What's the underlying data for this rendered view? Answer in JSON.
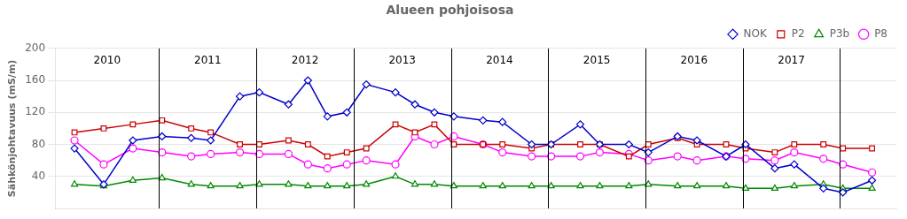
{
  "chart_data": {
    "type": "line",
    "title": "Alueen pohjoisosa",
    "ylabel": "Sähkönjohtavuus (mS/m)",
    "x": [
      2009.3,
      2009.6,
      2009.9,
      2010.2,
      2010.5,
      2010.7,
      2011.0,
      2011.2,
      2011.5,
      2011.7,
      2011.9,
      2012.1,
      2012.3,
      2012.6,
      2012.8,
      2013.0,
      2013.2,
      2013.5,
      2013.7,
      2014.0,
      2014.2,
      2014.5,
      2014.7,
      2015.0,
      2015.2,
      2015.5,
      2015.7,
      2016.0,
      2016.2,
      2016.5,
      2016.7,
      2017.0,
      2017.2,
      2017.5
    ],
    "series": [
      {
        "name": "NOK",
        "color": "#0000CC",
        "marker": "diamond",
        "values": [
          75,
          30,
          85,
          90,
          88,
          85,
          140,
          145,
          130,
          160,
          115,
          120,
          155,
          145,
          130,
          120,
          115,
          110,
          108,
          80,
          80,
          105,
          80,
          80,
          70,
          90,
          85,
          65,
          80,
          50,
          55,
          25,
          20,
          35
        ]
      },
      {
        "name": "P2",
        "color": "#CC0000",
        "marker": "square",
        "values": [
          95,
          100,
          105,
          110,
          100,
          95,
          80,
          80,
          85,
          80,
          65,
          70,
          75,
          105,
          95,
          105,
          80,
          80,
          80,
          75,
          80,
          80,
          80,
          65,
          80,
          88,
          80,
          80,
          75,
          70,
          80,
          80,
          75,
          75
        ]
      },
      {
        "name": "P3b",
        "color": "#008800",
        "marker": "triangle",
        "values": [
          30,
          28,
          35,
          38,
          30,
          28,
          28,
          30,
          30,
          28,
          28,
          28,
          30,
          40,
          30,
          30,
          28,
          28,
          28,
          28,
          28,
          28,
          28,
          28,
          30,
          28,
          28,
          28,
          25,
          25,
          28,
          30,
          25,
          25
        ]
      },
      {
        "name": "P8",
        "color": "#FF00FF",
        "marker": "circle",
        "values": [
          85,
          55,
          75,
          70,
          65,
          68,
          70,
          68,
          68,
          55,
          50,
          55,
          60,
          55,
          90,
          80,
          90,
          80,
          70,
          65,
          65,
          65,
          70,
          68,
          60,
          65,
          60,
          65,
          62,
          60,
          70,
          62,
          55,
          45
        ]
      }
    ],
    "xlim": [
      2009.1,
      2017.75
    ],
    "ylim": [
      0,
      200
    ],
    "yticks": [
      40,
      80,
      120,
      160,
      200
    ],
    "tick_labels": "y",
    "grid": true,
    "legend": "upper right",
    "vlines": [
      2010.17,
      2011.17,
      2012.17,
      2013.17,
      2014.17,
      2015.17,
      2016.17,
      2017.17
    ],
    "annotations": [
      {
        "text": "2010",
        "x": 2009.635,
        "y": 185
      },
      {
        "text": "2011",
        "x": 2010.67,
        "y": 185
      },
      {
        "text": "2012",
        "x": 2011.67,
        "y": 185
      },
      {
        "text": "2013",
        "x": 2012.67,
        "y": 185
      },
      {
        "text": "2014",
        "x": 2013.67,
        "y": 185
      },
      {
        "text": "2015",
        "x": 2014.67,
        "y": 185
      },
      {
        "text": "2016",
        "x": 2015.67,
        "y": 185
      },
      {
        "text": "2017",
        "x": 2016.67,
        "y": 185
      }
    ]
  }
}
